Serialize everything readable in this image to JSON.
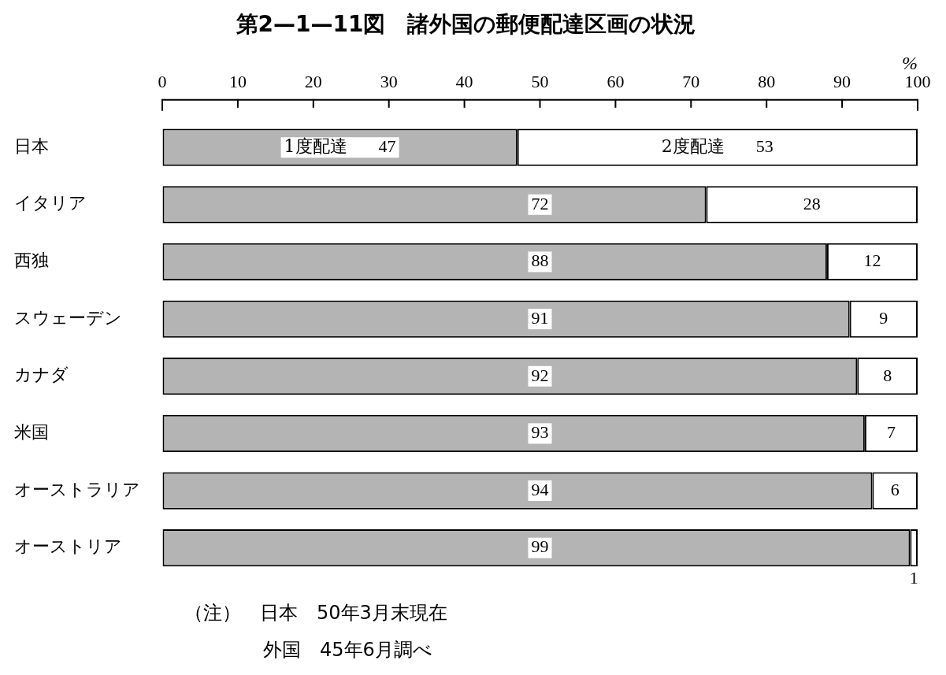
{
  "chart_data": {
    "type": "bar",
    "orientation": "horizontal",
    "stacked": true,
    "title": "第2—1—11図　諸外国の郵便配達区画の状況",
    "xlabel": "%",
    "categories": [
      "日本",
      "イタリア",
      "西独",
      "スウェーデン",
      "カナダ",
      "米国",
      "オーストラリア",
      "オーストリア"
    ],
    "series": [
      {
        "name": "1度配達",
        "color": "#b4b4b4",
        "values": [
          47,
          72,
          88,
          91,
          92,
          93,
          94,
          99
        ]
      },
      {
        "name": "2度配達",
        "color": "#ffffff",
        "values": [
          53,
          28,
          12,
          9,
          8,
          7,
          6,
          1
        ]
      }
    ],
    "xlim": [
      0,
      100
    ],
    "xticks": [
      0,
      10,
      20,
      30,
      40,
      50,
      60,
      70,
      80,
      90,
      100
    ],
    "data_labels": true,
    "annotations": [
      "（注）　日本　50年3月末現在",
      "外国　45年6月調べ"
    ]
  }
}
